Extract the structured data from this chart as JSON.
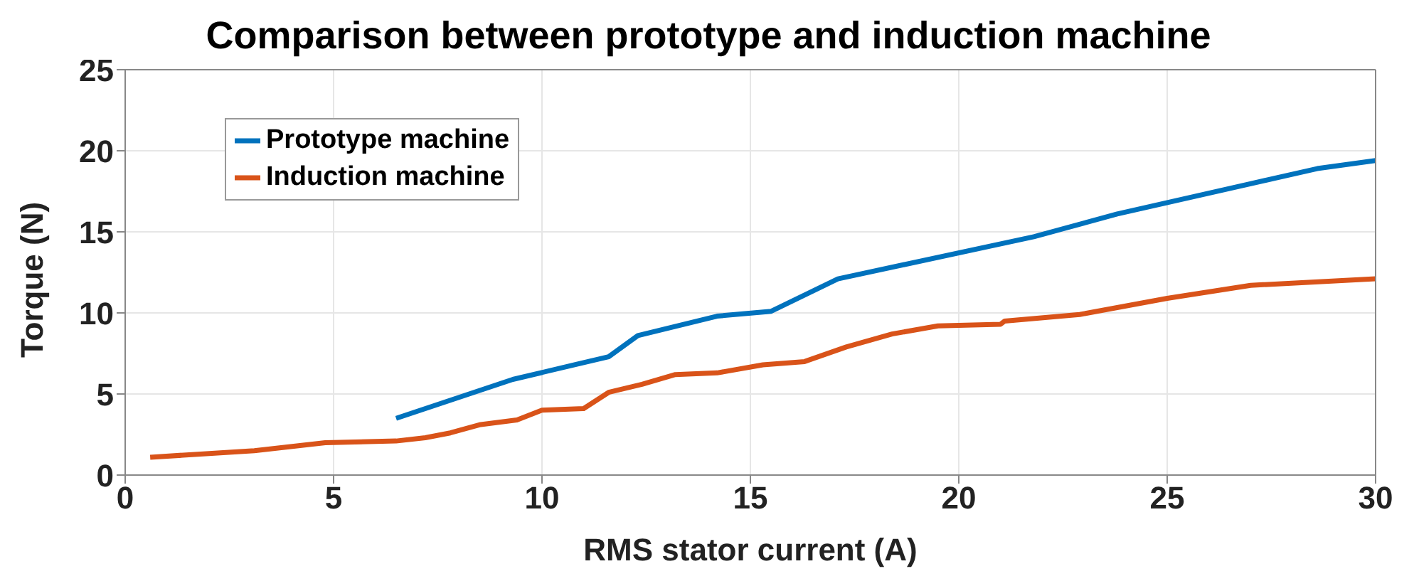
{
  "chart_data": {
    "type": "line",
    "title": "Comparison between prototype and induction machine",
    "xlabel": "RMS stator current (A)",
    "ylabel": "Torque (N)",
    "xlim": [
      0,
      30
    ],
    "xticks": [
      0,
      5,
      10,
      15,
      20,
      25,
      30
    ],
    "ylim": [
      0,
      25
    ],
    "yticks": [
      0,
      5,
      10,
      15,
      20,
      25
    ],
    "grid": true,
    "legend": "top left",
    "marker": "none",
    "line_style": "solid",
    "series": [
      {
        "name": "Prototype machine",
        "color": "#0072bd",
        "x": [
          6.5,
          9.3,
          11.6,
          12.3,
          14.2,
          15.5,
          17.1,
          21.8,
          23.8,
          28.6,
          30
        ],
        "values": [
          3.5,
          5.9,
          7.3,
          8.6,
          9.8,
          10.1,
          12.1,
          14.7,
          16.1,
          18.9,
          19.4
        ]
      },
      {
        "name": "Induction machine",
        "color": "#d95319",
        "x": [
          0.6,
          3.1,
          4.8,
          6.5,
          7.2,
          7.8,
          8.5,
          9.4,
          10,
          11,
          11.6,
          12.4,
          13.2,
          14.2,
          15.3,
          16.3,
          17.3,
          18.4,
          19.5,
          21,
          21.1,
          22.9,
          25,
          27,
          30
        ],
        "values": [
          1.1,
          1.5,
          2.0,
          2.1,
          2.3,
          2.6,
          3.1,
          3.4,
          4.0,
          4.1,
          5.1,
          5.6,
          6.2,
          6.3,
          6.8,
          7.0,
          7.9,
          8.7,
          9.2,
          9.3,
          9.5,
          9.9,
          10.9,
          11.7,
          12.1
        ]
      }
    ]
  }
}
